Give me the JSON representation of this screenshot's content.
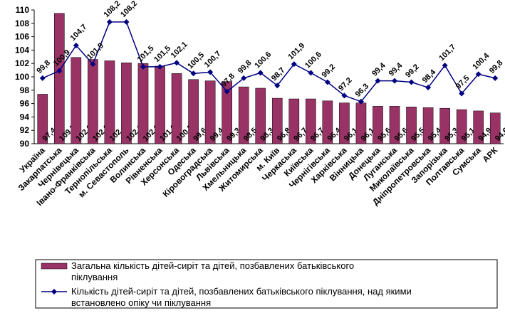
{
  "chart_data": {
    "type": "bar_line",
    "categories": [
      "Україна",
      "Закарпатська",
      "Чернівецька",
      "Івано-Франківська",
      "Тернопільська",
      "м. Севастополь",
      "Волинська",
      "Рівненська",
      "Херсонська",
      "Одеська",
      "Кіровоградська",
      "Львівська",
      "Хмельницька",
      "Житомирська",
      "м. Київ",
      "Черкаська",
      "Київська",
      "Чернігівська",
      "Харківська",
      "Вінницька",
      "Донецька",
      "Луганська",
      "Миколаївська",
      "Дніпропетровська",
      "Запорізька",
      "Полтавська",
      "Сумська",
      "АРК"
    ],
    "series": [
      {
        "name": "Загальна кількість дітей-сиріт та дітей, позбавлених батьківського піклування",
        "type": "bar",
        "color": "#993366",
        "values": [
          97.4,
          109.5,
          102.9,
          102.6,
          102.4,
          102.1,
          102.0,
          101.6,
          100.5,
          99.6,
          99.4,
          99.3,
          98.5,
          98.3,
          96.8,
          96.7,
          96.7,
          96.4,
          96.1,
          96.1,
          95.6,
          95.6,
          95.5,
          95.4,
          95.3,
          95.1,
          94.9,
          94.6
        ],
        "value_labels": [
          "97,4",
          "109,5",
          "102,9",
          "102,6",
          "102,4",
          "102,1",
          "102,0",
          "101,6",
          "100,5",
          "99,6",
          "99,4",
          "99,3",
          "98,5",
          "98,3",
          "96,8",
          "96,7",
          "96,7",
          "96,4",
          "96,1",
          "96,1",
          "95,6",
          "95,6",
          "95,5",
          "95,4",
          "95,3",
          "95,1",
          "94,9",
          "94,6"
        ]
      },
      {
        "name": "Кількість дітей-сиріт та дітей, позбавлених батьківського піклування, над якими встановлено опіку чи піклування",
        "type": "line",
        "color": "#000080",
        "values": [
          99.8,
          100.9,
          104.7,
          101.9,
          108.2,
          108.2,
          101.5,
          101.5,
          102.1,
          100.5,
          100.7,
          97.8,
          99.8,
          100.6,
          98.7,
          101.9,
          100.6,
          99.2,
          97.2,
          96.3,
          99.4,
          99.4,
          99.2,
          98.4,
          101.7,
          97.5,
          100.4,
          99.8
        ],
        "value_labels": [
          "99,8",
          "100,9",
          "104,7",
          "101,9",
          "108,2",
          "108,2",
          "101,5",
          "101,5",
          "102,1",
          "100,5",
          "100,7",
          "97,8",
          "99,8",
          "100,6",
          "98,7",
          "101,9",
          "100,6",
          "99,2",
          "97,2",
          "96,3",
          "99,4",
          "99,4",
          "99,2",
          "98,4",
          "101,7",
          "97,5",
          "100,4",
          "99,8"
        ]
      }
    ],
    "ylim": [
      90,
      110
    ],
    "yticks": [
      90,
      92,
      94,
      96,
      98,
      100,
      102,
      104,
      106,
      108,
      110
    ],
    "legend": "bottom"
  }
}
